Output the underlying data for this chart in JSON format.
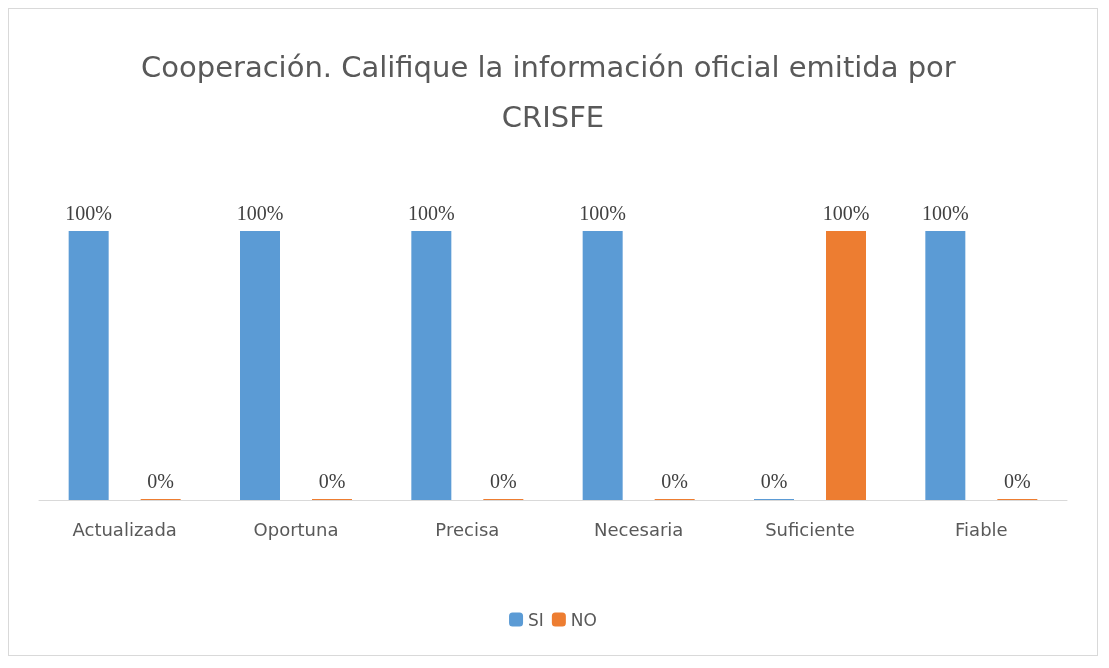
{
  "chart_data": {
    "type": "bar",
    "title": "Cooperación. Califique la información oficial emitida por CRISFE",
    "categories": [
      "Actualizada",
      "Oportuna",
      "Precisa",
      "Necesaria",
      "Suficiente",
      "Fiable"
    ],
    "series": [
      {
        "name": "SI",
        "color": "#5b9bd5",
        "values": [
          100,
          100,
          100,
          100,
          0,
          100
        ],
        "value_labels": [
          "100%",
          "100%",
          "100%",
          "100%",
          "0%",
          "100%"
        ]
      },
      {
        "name": "NO",
        "color": "#ed7d31",
        "values": [
          0,
          0,
          0,
          0,
          100,
          0
        ],
        "value_labels": [
          "0%",
          "0%",
          "0%",
          "0%",
          "100%",
          "0%"
        ]
      }
    ],
    "legend": "bottom"
  }
}
